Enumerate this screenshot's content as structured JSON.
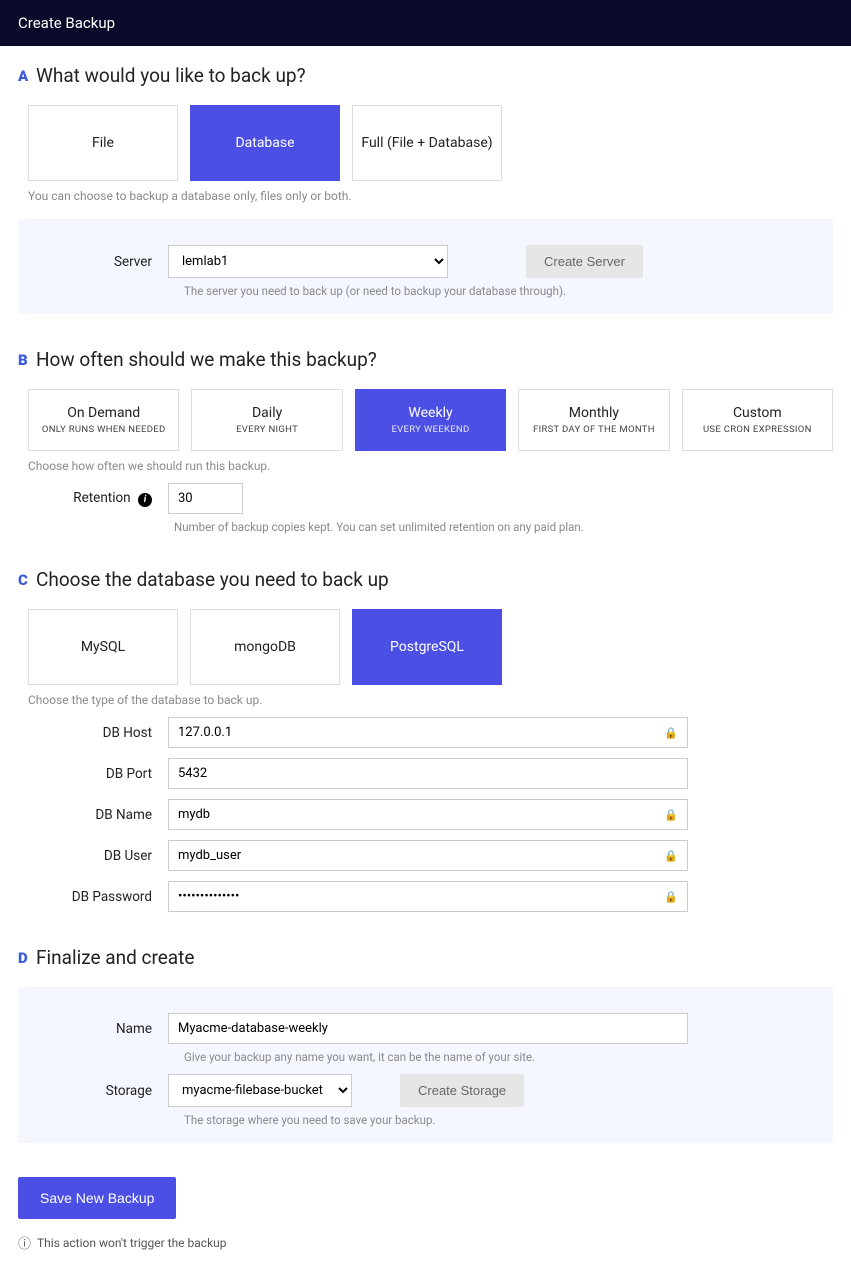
{
  "header": {
    "title": "Create Backup"
  },
  "sectionA": {
    "badge": "A",
    "title": "What would you like to back up?",
    "options": [
      {
        "label": "File",
        "selected": false
      },
      {
        "label": "Database",
        "selected": true
      },
      {
        "label": "Full (File + Database)",
        "selected": false
      }
    ],
    "help": "You can choose to backup a database only, files only or both.",
    "server": {
      "label": "Server",
      "value": "lemlab1",
      "button": "Create Server",
      "help": "The server you need to back up (or need to backup your database through)."
    }
  },
  "sectionB": {
    "badge": "B",
    "title": "How often should we make this backup?",
    "options": [
      {
        "main": "On Demand",
        "sub": "Only runs when needed",
        "selected": false
      },
      {
        "main": "Daily",
        "sub": "Every night",
        "selected": false
      },
      {
        "main": "Weekly",
        "sub": "Every weekend",
        "selected": true
      },
      {
        "main": "Monthly",
        "sub": "First day of the month",
        "selected": false
      },
      {
        "main": "Custom",
        "sub": "Use cron expression",
        "selected": false
      }
    ],
    "help": "Choose how often we should run this backup.",
    "retention": {
      "label": "Retention",
      "value": "30",
      "help": "Number of backup copies kept. You can set unlimited retention on any paid plan."
    }
  },
  "sectionC": {
    "badge": "C",
    "title": "Choose the database you need to back up",
    "options": [
      {
        "label": "MySQL",
        "selected": false
      },
      {
        "label": "mongoDB",
        "selected": false
      },
      {
        "label": "PostgreSQL",
        "selected": true
      }
    ],
    "help": "Choose the type of the database to back up.",
    "fields": {
      "host": {
        "label": "DB Host",
        "value": "127.0.0.1",
        "locked": true
      },
      "port": {
        "label": "DB Port",
        "value": "5432",
        "locked": false
      },
      "name": {
        "label": "DB Name",
        "value": "mydb",
        "locked": true
      },
      "user": {
        "label": "DB User",
        "value": "mydb_user",
        "locked": true
      },
      "password": {
        "label": "DB Password",
        "value": "••••••••••••••",
        "locked": true
      }
    }
  },
  "sectionD": {
    "badge": "D",
    "title": "Finalize and create",
    "name": {
      "label": "Name",
      "value": "Myacme-database-weekly",
      "help": "Give your backup any name you want, it can be the name of your site."
    },
    "storage": {
      "label": "Storage",
      "value": "myacme-filebase-bucket",
      "button": "Create Storage",
      "help": "The storage where you need to save your backup."
    }
  },
  "submit": {
    "label": "Save New Backup",
    "note": "This action won't trigger the backup"
  }
}
